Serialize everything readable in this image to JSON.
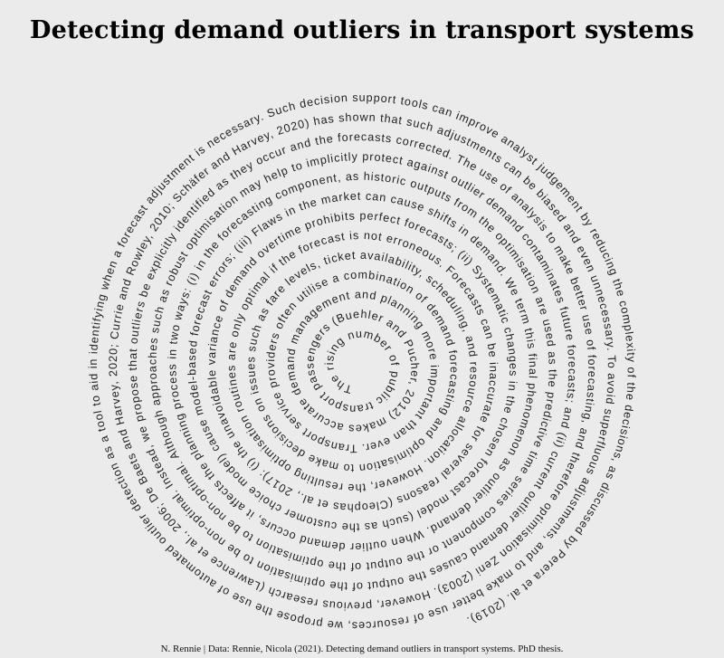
{
  "title": "Detecting demand outliers in transport systems",
  "spiral_text": "The rising number of public transport passengers (Buehler and Pucher, 2012) makes accurate demand management and planning more important than ever. Transport service providers often utilise a combination of demand forecasting and optimisation to make decisions on issues such as fare levels, ticket availability, scheduling, and resource allocation. However, the resulting optimisation routines are only optimal if the forecast is not erroneous. Forecasts can be inaccurate for several reasons (Cleophas et al., 2017): (i) the unavoidable variance of demand overtime prohibits perfect forecasts; (ii) Systematic changes in the chosen forecast model (such as the customer choice model) cause model-based forecast errors; (iii) Flaws in the market can cause shifts in demand. We term this final phenomenon as outlier demand. When outlier demand occurs, it affects the planning process in two ways: (i) in the forecasting component, as historic outputs from the optimisation are used as the predictive time series component or the output of the optimisation to be non-optimal. Although approaches such as robust optimisation may help to implicitly protect against outlier demand contaminates future forecasts; and (ii) current outlier demand causes the output of the optimisation to be non-optimal. Instead, we propose that outliers be explicitly identified as they occur and the forecasts corrected. The use of analysis to make better use of forecasting, and therefore optimisation Zeni (2003). However, previous research (Lawrence et al., 2006; De Baets and Harvey, 2020; Currie and Rowley, 2010; Schäfer and Harvey, 2020) has shown that such adjustments can be biased and even unnecessary. To avoid superfluous adjustments, and to make better use of resources, we propose the use of automated outlier detection as a tool to aid in identifying when a forecast adjustment is necessary. Such decision support tools can improve analyst judgement by reducing the complexity of the decisions, as discussed by Perera et al. (2019).",
  "caption": "N. Rennie | Data: Rennie, Nicola (2021). Detecting demand outliers in transport systems. PhD thesis.",
  "colors": {
    "background": "#ebebeb",
    "text": "#222222"
  }
}
